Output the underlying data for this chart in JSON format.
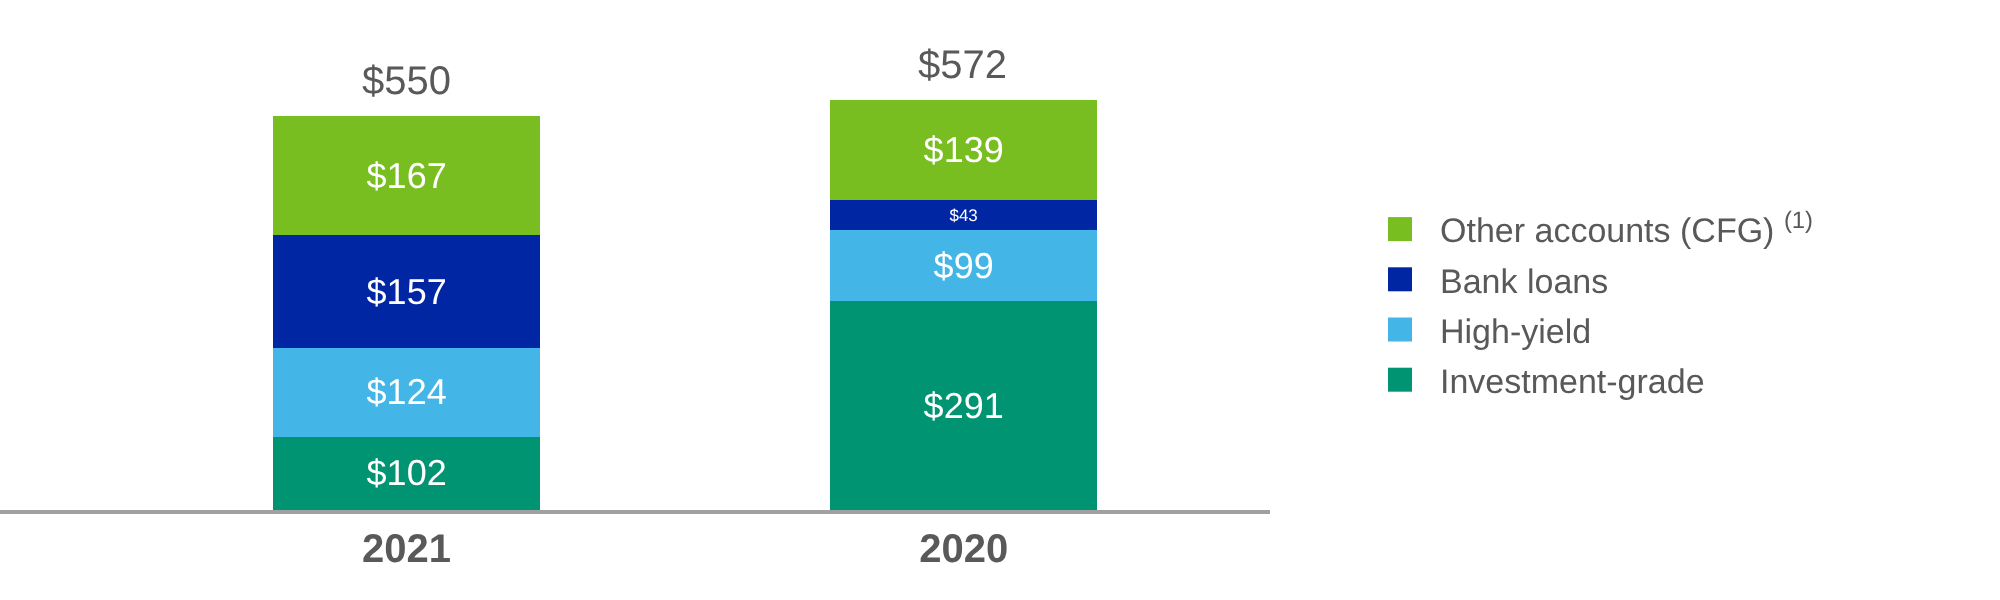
{
  "chart_data": {
    "type": "bar",
    "stacked": true,
    "categories": [
      "2021",
      "2020"
    ],
    "series": [
      {
        "name": "Investment-grade",
        "color": "#009473",
        "values": [
          102,
          291
        ],
        "value_labels": [
          "$102",
          "$291"
        ]
      },
      {
        "name": "High-yield",
        "color": "#43b5e6",
        "values": [
          124,
          99
        ],
        "value_labels": [
          "$124",
          "$99"
        ]
      },
      {
        "name": "Bank loans",
        "color": "#0026a3",
        "values": [
          157,
          43
        ],
        "value_labels": [
          "$157",
          "$43"
        ]
      },
      {
        "name": "Other accounts (CFG) $^{(1)}$",
        "color": "#78be20",
        "values": [
          167,
          139
        ],
        "value_labels": [
          "$167",
          "$139"
        ]
      }
    ],
    "totals": [
      "$550",
      "$572"
    ],
    "legend": "right",
    "grid": false
  }
}
